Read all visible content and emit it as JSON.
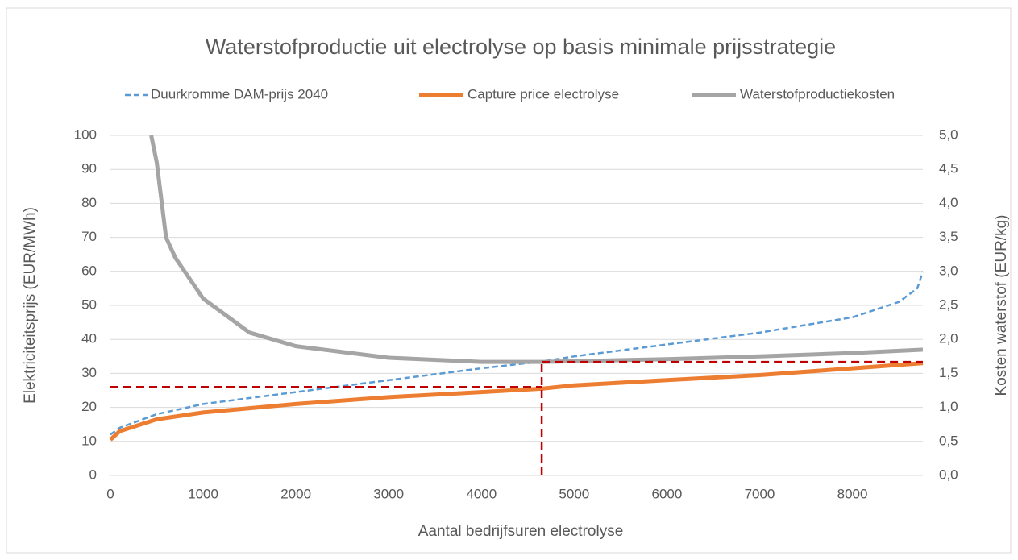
{
  "chart_data": {
    "type": "line",
    "title": "Waterstofproductie uit electrolyse op basis minimale prijsstrategie",
    "xlabel": "Aantal bedrijfsuren electrolyse",
    "ylabel": "Elektriciteitsprijs (EUR/MWh)",
    "y2label": "Kosten waterstof (EUR/kg)",
    "xlim": [
      0,
      8760
    ],
    "xticks": [
      0,
      1000,
      2000,
      3000,
      4000,
      5000,
      6000,
      7000,
      8000
    ],
    "ylim": [
      0,
      100
    ],
    "yticks": [
      0,
      10,
      20,
      30,
      40,
      50,
      60,
      70,
      80,
      90,
      100
    ],
    "y2lim": [
      0,
      5
    ],
    "y2ticks": [
      {
        "value": 0,
        "label": "0,0"
      },
      {
        "value": 0.5,
        "label": "0,5"
      },
      {
        "value": 1,
        "label": "1,0"
      },
      {
        "value": 1.5,
        "label": "1,5"
      },
      {
        "value": 2,
        "label": "2,0"
      },
      {
        "value": 2.5,
        "label": "2,5"
      },
      {
        "value": 3,
        "label": "3,0"
      },
      {
        "value": 3.5,
        "label": "3,5"
      },
      {
        "value": 4,
        "label": "4,0"
      },
      {
        "value": 4.5,
        "label": "4,5"
      },
      {
        "value": 5,
        "label": "5,0"
      }
    ],
    "grid": true,
    "legend": "top",
    "series": [
      {
        "name": "Duurkromme DAM-prijs 2040",
        "color": "#5b9bd5",
        "dashed": true,
        "axis": "y",
        "x": [
          0,
          100,
          500,
          1000,
          2000,
          3000,
          4000,
          4650,
          5000,
          6000,
          7000,
          8000,
          8500,
          8700,
          8760
        ],
        "values": [
          12,
          14,
          18,
          21,
          24.5,
          28,
          31.5,
          33.5,
          35,
          38.5,
          42,
          46.5,
          51,
          55,
          60
        ]
      },
      {
        "name": "Capture price electrolyse",
        "color": "#ed7d31",
        "dashed": false,
        "axis": "y",
        "x": [
          0,
          100,
          500,
          1000,
          2000,
          3000,
          4000,
          4650,
          5000,
          6000,
          7000,
          8000,
          8760
        ],
        "values": [
          10.5,
          13,
          16.5,
          18.5,
          21,
          23,
          24.5,
          25.5,
          26.5,
          28,
          29.5,
          31.5,
          33
        ]
      },
      {
        "name": "Waterstofproductiekosten",
        "color": "#a5a5a5",
        "dashed": false,
        "axis": "y2",
        "x": [
          440,
          500,
          600,
          700,
          1000,
          1500,
          2000,
          3000,
          4000,
          4650,
          5000,
          6000,
          7000,
          8000,
          8760
        ],
        "values": [
          5.0,
          4.6,
          3.5,
          3.2,
          2.6,
          2.1,
          1.9,
          1.73,
          1.67,
          1.67,
          1.68,
          1.71,
          1.75,
          1.8,
          1.85
        ]
      }
    ],
    "annotation_lines": [
      {
        "color": "#c00000",
        "x": [
          0,
          4650
        ],
        "values": [
          26,
          26
        ]
      },
      {
        "color": "#c00000",
        "x": [
          4650,
          4650
        ],
        "values": [
          0,
          33.5
        ]
      },
      {
        "color": "#c00000",
        "x": [
          4650,
          8760
        ],
        "values": [
          33.4,
          33.4
        ]
      }
    ]
  }
}
